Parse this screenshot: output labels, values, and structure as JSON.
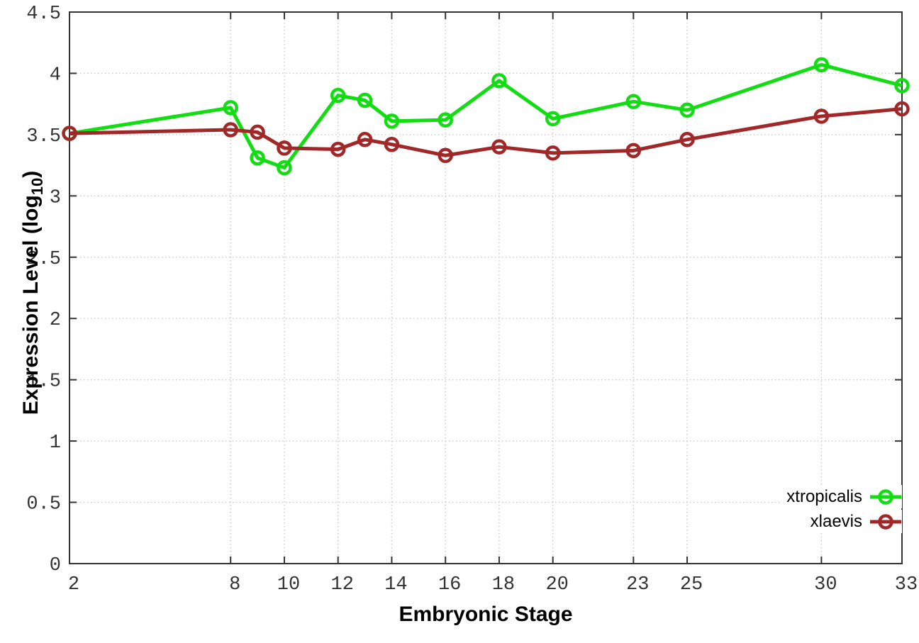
{
  "chart_data": {
    "type": "line",
    "title": "",
    "xlabel": "Embryonic Stage",
    "ylabel_prefix": "Expression Level (log",
    "ylabel_sub": "10",
    "ylabel_suffix": ")",
    "xlim": [
      2,
      33
    ],
    "ylim": [
      0,
      4.5
    ],
    "xticks": [
      2,
      8,
      10,
      12,
      14,
      16,
      18,
      20,
      23,
      25,
      30,
      33
    ],
    "yticks": [
      "0",
      "0.5",
      "1",
      "1.5",
      "2",
      "2.5",
      "3",
      "3.5",
      "4",
      "4.5"
    ],
    "grid": true,
    "legend_position": "bottom-right",
    "x": [
      2,
      8,
      9,
      10,
      12,
      13,
      14,
      16,
      18,
      20,
      23,
      25,
      30,
      33
    ],
    "series": [
      {
        "name": "xtropicalis",
        "color": "#12dd12",
        "values": [
          3.51,
          3.72,
          3.31,
          3.23,
          3.82,
          3.78,
          3.61,
          3.62,
          3.94,
          3.63,
          3.77,
          3.7,
          4.07,
          3.9
        ]
      },
      {
        "name": "xlaevis",
        "color": "#a02828",
        "values": [
          3.51,
          3.54,
          3.52,
          3.39,
          3.38,
          3.46,
          3.42,
          3.33,
          3.4,
          3.35,
          3.37,
          3.46,
          3.65,
          3.71
        ]
      }
    ]
  },
  "style_colors": {
    "axis_border": "#333333",
    "gridline": "#c9c9c9",
    "tick_label": "#333333"
  }
}
